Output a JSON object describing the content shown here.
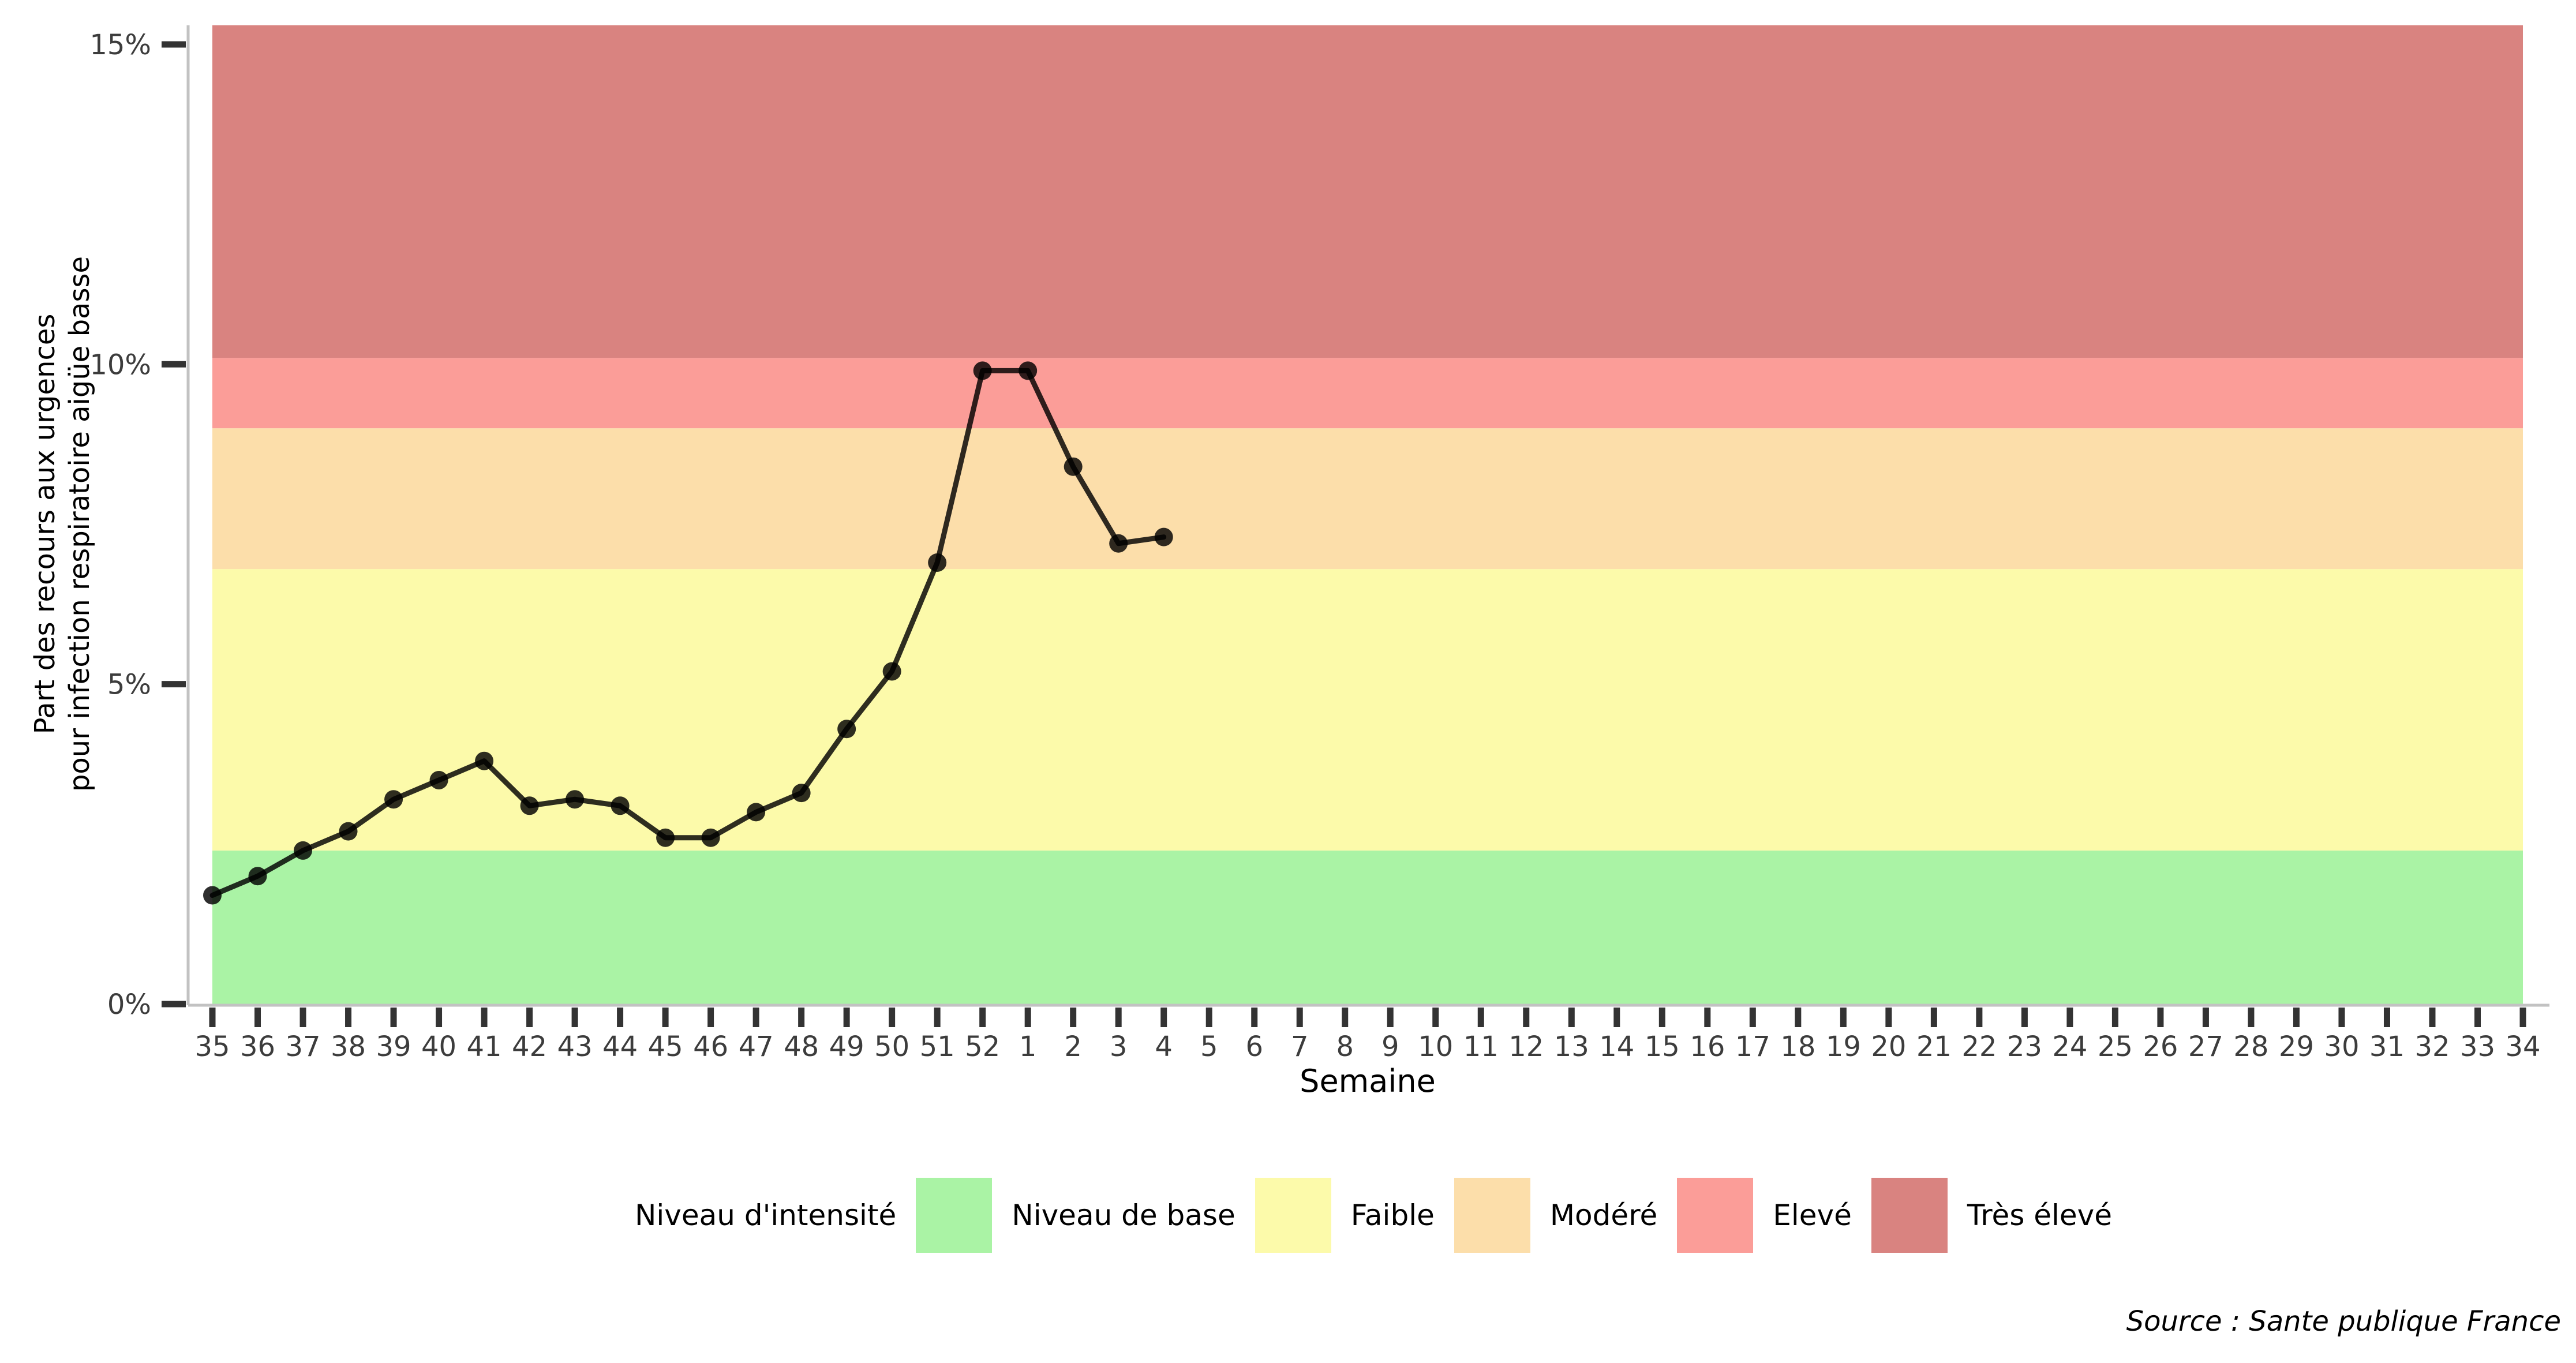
{
  "chart_data": {
    "type": "line",
    "title": "",
    "xlabel": "Semaine",
    "ylabel_line1": "Part des recours aux urgences",
    "ylabel_line2": "pour infection respiratoire aigüe basse",
    "x_categories": [
      "35",
      "36",
      "37",
      "38",
      "39",
      "40",
      "41",
      "42",
      "43",
      "44",
      "45",
      "46",
      "47",
      "48",
      "49",
      "50",
      "51",
      "52",
      "1",
      "2",
      "3",
      "4",
      "5",
      "6",
      "7",
      "8",
      "9",
      "10",
      "11",
      "12",
      "13",
      "14",
      "15",
      "16",
      "17",
      "18",
      "19",
      "20",
      "21",
      "22",
      "23",
      "24",
      "25",
      "26",
      "27",
      "28",
      "29",
      "30",
      "31",
      "32",
      "33",
      "34"
    ],
    "series": [
      {
        "name": "Part des recours aux urgences pour infection respiratoire aigüe basse",
        "weeks": [
          "35",
          "36",
          "37",
          "38",
          "39",
          "40",
          "41",
          "42",
          "43",
          "44",
          "45",
          "46",
          "47",
          "48",
          "49",
          "50",
          "51",
          "52",
          "1",
          "2",
          "3",
          "4"
        ],
        "values": [
          1.7,
          2.0,
          2.4,
          2.7,
          3.2,
          3.5,
          3.8,
          3.1,
          3.2,
          3.1,
          2.6,
          2.6,
          3.0,
          3.3,
          4.3,
          5.2,
          6.9,
          9.9,
          9.9,
          8.4,
          7.2,
          7.3
        ]
      }
    ],
    "line_color": "rgba(0,0,0,0.82)",
    "ylim": [
      0,
      15.3
    ],
    "yticks": [
      {
        "value": 0,
        "label": "0%"
      },
      {
        "value": 5,
        "label": "5%"
      },
      {
        "value": 10,
        "label": "10%"
      },
      {
        "value": 15,
        "label": "15%"
      }
    ],
    "bands": [
      {
        "label": "Niveau de base",
        "from": 0,
        "to": 2.4,
        "color": "#aaf3a5"
      },
      {
        "label": "Faible",
        "from": 2.4,
        "to": 6.8,
        "color": "#fcfaaa"
      },
      {
        "label": "Modéré",
        "from": 6.8,
        "to": 9.0,
        "color": "#fcdeaa"
      },
      {
        "label": "Elevé",
        "from": 9.0,
        "to": 10.1,
        "color": "#fb9d98"
      },
      {
        "label": "Très élevé",
        "from": 10.1,
        "to": 15.3,
        "color": "#d98380"
      }
    ],
    "grid": false,
    "axis_line_color": "#c2c2c2",
    "tick_mark_color": "#333333",
    "tick_label_color": "#3c3c3c"
  },
  "legend": {
    "title": "Niveau d'intensité",
    "items": [
      {
        "label": "Niveau de base",
        "color": "#aaf3a5"
      },
      {
        "label": "Faible",
        "color": "#fcfaaa"
      },
      {
        "label": "Modéré",
        "color": "#fcdeaa"
      },
      {
        "label": "Elevé",
        "color": "#fb9d98"
      },
      {
        "label": "Très élevé",
        "color": "#d98380"
      }
    ]
  },
  "source": {
    "text": "Source : Sante publique France"
  }
}
